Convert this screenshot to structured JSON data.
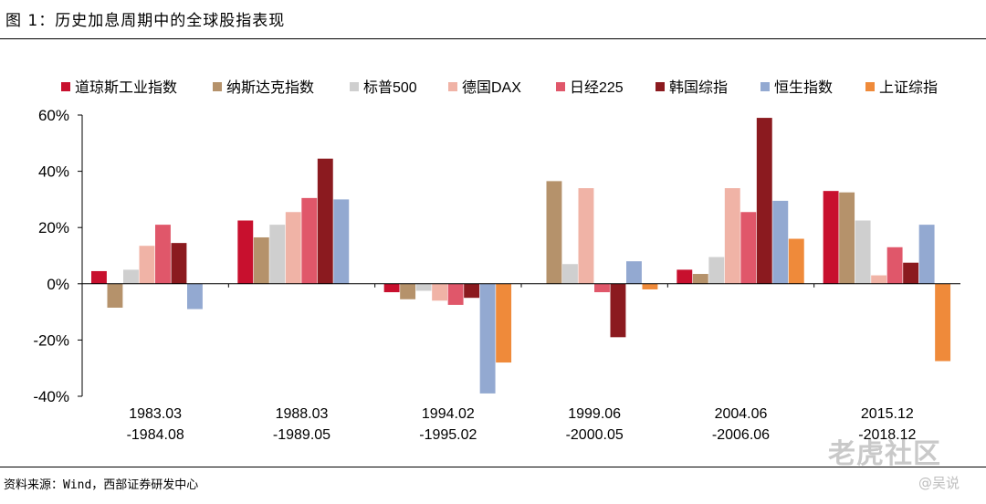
{
  "figure": {
    "title": "图 1：历史加息周期中的全球股指表现",
    "source": "资料来源：Wind，西部证券研发中心"
  },
  "watermark": {
    "logo_text": "老虎社区",
    "author": "@吴说"
  },
  "chart_data": {
    "type": "bar",
    "title": "",
    "xlabel": "",
    "ylabel": "",
    "ylim": [
      -40,
      60
    ],
    "yticks": [
      -40,
      -20,
      0,
      20,
      40,
      60
    ],
    "ytick_labels": [
      "-40%",
      "-20%",
      "0%",
      "20%",
      "40%",
      "60%"
    ],
    "categories": [
      [
        "1983.03",
        "-1984.08"
      ],
      [
        "1988.03",
        "-1989.05"
      ],
      [
        "1994.02",
        "-1995.02"
      ],
      [
        "1999.06",
        "-2000.05"
      ],
      [
        "2004.06",
        "-2006.06"
      ],
      [
        "2015.12",
        "-2018.12"
      ]
    ],
    "legend_position": "top",
    "series": [
      {
        "name": "道琼斯工业指数",
        "color": "#c8102e",
        "values": [
          4.5,
          22.5,
          -3,
          null,
          5,
          33
        ]
      },
      {
        "name": "纳斯达克指数",
        "color": "#b5926b",
        "values": [
          -8.5,
          16.5,
          -5.5,
          36.5,
          3.5,
          32.5
        ]
      },
      {
        "name": "标普500",
        "color": "#cfcfcf",
        "values": [
          5,
          21,
          -2.5,
          7,
          9.5,
          22.5
        ]
      },
      {
        "name": "德国DAX",
        "color": "#f0b3a6",
        "values": [
          13.5,
          25.5,
          -6,
          34,
          34,
          3
        ]
      },
      {
        "name": "日经225",
        "color": "#e0576a",
        "values": [
          21,
          30.5,
          -7.5,
          -3,
          25.5,
          13
        ]
      },
      {
        "name": "韩国综指",
        "color": "#8b1a1f",
        "values": [
          14.5,
          44.5,
          -5,
          -19,
          59,
          7.5
        ]
      },
      {
        "name": "恒生指数",
        "color": "#93a9d1",
        "values": [
          -9,
          30,
          -39,
          8,
          29.5,
          21
        ]
      },
      {
        "name": "上证综指",
        "color": "#ef8a3a",
        "values": [
          null,
          null,
          -28,
          -2,
          16,
          -27.5
        ]
      }
    ]
  }
}
